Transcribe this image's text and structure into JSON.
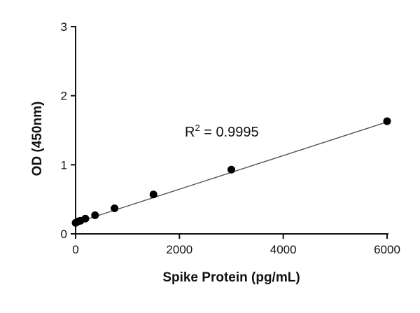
{
  "chart_data": {
    "type": "scatter",
    "xlabel": "Spike Protein (pg/mL)",
    "ylabel": "OD (450nm)",
    "xlim": [
      0,
      6000
    ],
    "ylim": [
      0,
      3
    ],
    "xticks": [
      0,
      2000,
      4000,
      6000
    ],
    "yticks": [
      0,
      1,
      2,
      3
    ],
    "grid": false,
    "series": [
      {
        "x": [
          0,
          47,
          94,
          188,
          375,
          750,
          1500,
          3000,
          6000
        ],
        "y": [
          0.16,
          0.18,
          0.19,
          0.22,
          0.27,
          0.37,
          0.57,
          0.93,
          1.63
        ]
      }
    ],
    "fit": {
      "type": "linear",
      "x": [
        0,
        6000
      ],
      "y": [
        0.16,
        1.62
      ]
    },
    "annotation": {
      "base": "R",
      "sup": "2",
      "rest": " = 0.9995"
    }
  }
}
